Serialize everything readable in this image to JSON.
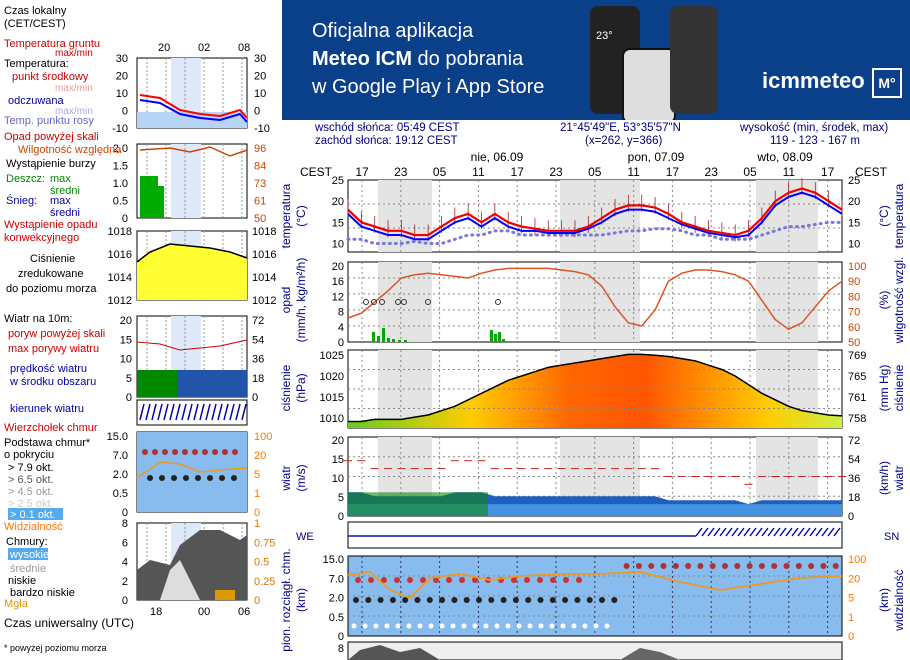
{
  "banner": {
    "line1": "Oficjalna aplikacja",
    "line2_bold": "Meteo ICM",
    "line2_rest": " do pobrania",
    "line3": "w Google Play i App Store",
    "logo": "icmmeteo",
    "logo_badge": "M°",
    "phone_temp": "23°",
    "bg_color": "#0a3f8a"
  },
  "header": {
    "sunrise": "wschód słońca: 05:49 CEST",
    "sunset": "zachód słońca: 19:12 CEST",
    "coords": "21°45'49\"E, 53°35'57\"N",
    "grid": "(x=262,  y=366)",
    "elev_label": "wysokość (min, środek, max)",
    "elev_values": "119 - 123 - 167 m"
  },
  "legend": {
    "local_time": "Czas lokalny",
    "local_time2": "(CET/CEST)",
    "lt_ticks": [
      "20",
      "02",
      "08"
    ],
    "soil": "Temperatura gruntu",
    "soil2": "max/min",
    "temp": "Temperatura:",
    "mid": "punkt środkowy",
    "maxmin": "max/min",
    "feels": "odczuwana",
    "feels2": "max/min",
    "dew": "Temp. punktu rosy",
    "precip_above": "Opad powyżej skali",
    "rh": "Wilgotność względna",
    "storm": "Wystąpienie burzy",
    "rain": "Deszcz:",
    "rain_max": "max",
    "rain_avg": "średni",
    "snow": "Śnieg:",
    "snow_max": "max",
    "snow_avg": "średni",
    "conv": "Wystąpienie opadu",
    "conv2": "konwekcyjnego",
    "pressure1": "Ciśnienie",
    "pressure2": "zredukowane",
    "pressure3": "do poziomu morza",
    "wind10": "Wiatr na 10m:",
    "gusts_above": "poryw powyżej skali",
    "gusts_max": "max porywy wiatru",
    "wind_speed": "prędkość wiatru",
    "wind_area": "w środku obszaru",
    "wind_dir": "kierunek wiatru",
    "cloud_top": "Wierzchołek chmur",
    "cloud_base": "Podstawa chmur*",
    "cloud_base2": "o pokryciu",
    "okt79": "> 7.9 okt.",
    "okt65": "> 6.5 okt.",
    "okt45": "> 4.5 okt.",
    "okt25": "> 2.5 okt.",
    "okt01": "> 0.1 okt.",
    "visibility": "Widzialność",
    "clouds": "Chmury:",
    "high": "wysokie",
    "medium": "średnie",
    "low": "niskie",
    "verylow": "bardzo niskie",
    "fog": "Mgła",
    "utc": "Czas uniwersalny (UTC)",
    "utc_ticks": [
      "18",
      "00",
      "06"
    ],
    "footnote": "* powyżej poziomu morza",
    "temp_left_ticks": [
      "30",
      "20",
      "10",
      "0",
      "-10"
    ],
    "temp_right_ticks": [
      "30",
      "20",
      "10",
      "0",
      "-10"
    ],
    "precip_left_ticks": [
      "2.0",
      "1.5",
      "1.0",
      "0.5",
      "0"
    ],
    "rh_ticks": [
      "96",
      "84",
      "73",
      "61",
      "50"
    ],
    "pres_left_ticks": [
      "1018",
      "1016",
      "1014",
      "1012"
    ],
    "pres_right_ticks": [
      "1018",
      "1016",
      "1014",
      "1012"
    ],
    "wind_left_ticks": [
      "20",
      "15",
      "10",
      "5",
      "0"
    ],
    "wind_right_ticks": [
      "72",
      "54",
      "36",
      "18",
      "0"
    ],
    "cb_left_ticks": [
      "15.0",
      "7.0",
      "2.0",
      "0.5",
      "0"
    ],
    "cb_right_ticks": [
      "100",
      "20",
      "5",
      "1",
      "0"
    ],
    "cl_left_ticks": [
      "8",
      "6",
      "4",
      "2",
      "0"
    ],
    "cl_right_ticks": [
      "1",
      "0.75",
      "0.5",
      "0.25",
      "0"
    ]
  },
  "main": {
    "tz": "CEST",
    "hours": [
      "17",
      "23",
      "05",
      "11",
      "17",
      "23",
      "05",
      "11",
      "17",
      "23",
      "05",
      "11",
      "17"
    ],
    "days": [
      "nie, 06.09",
      "pon, 07.09",
      "wto, 08.09"
    ],
    "temp_label": "temperatura",
    "temp_unit": "(°C)",
    "temp_ticks": [
      "25",
      "20",
      "15",
      "10"
    ],
    "precip_label": "opad",
    "precip_unit": "(mm/h, kg/m²/h)",
    "precip_ticks": [
      "20",
      "16",
      "12",
      "8",
      "4",
      "0"
    ],
    "rh_label": "wilgotność wzgl.",
    "rh_unit": "(%)",
    "rh_ticks": [
      "100",
      "90",
      "80",
      "70",
      "60",
      "50"
    ],
    "pres_label": "ciśnienie",
    "pres_unit": "(hPa)",
    "pres_ticks": [
      "1025",
      "1020",
      "1015",
      "1010"
    ],
    "pres_mmhg_unit": "(mm Hg)",
    "pres_mmhg_ticks": [
      "769",
      "765",
      "761",
      "758"
    ],
    "wind_label": "wiatr",
    "wind_unit": "(m/s)",
    "wind_ticks": [
      "20",
      "15",
      "10",
      "5",
      "0"
    ],
    "wind_kmh_unit": "(km/h)",
    "wind_kmh_ticks": [
      "72",
      "54",
      "36",
      "18",
      "0"
    ],
    "dir_label": "WE",
    "dir_label2": "SN",
    "cb_label": "pion. rozciągł. chm.",
    "cb_unit": "(km)",
    "cb_ticks": [
      "15.0",
      "7.0",
      "2.0",
      "0.5",
      "0"
    ],
    "vis_label": "widzialność",
    "vis_unit": "(km)",
    "vis_ticks": [
      "100",
      "20",
      "5",
      "1",
      "0"
    ],
    "cl_tick": "8"
  },
  "chart_data": [
    {
      "type": "line",
      "title": "temperatura",
      "ylabel": "(°C)",
      "x": [
        "17",
        "19",
        "21",
        "23",
        "01",
        "03",
        "05",
        "07",
        "09",
        "11",
        "13",
        "15",
        "17",
        "19",
        "21",
        "23",
        "01",
        "03",
        "05",
        "07",
        "09",
        "11",
        "13",
        "15",
        "17",
        "19",
        "21",
        "23",
        "01",
        "03",
        "05",
        "07",
        "09",
        "11",
        "13",
        "15",
        "17",
        "19"
      ],
      "series": [
        {
          "values": [
            18,
            15,
            14,
            13,
            13,
            12,
            12,
            14,
            16,
            17,
            15,
            17,
            15,
            14,
            13.5,
            13,
            13,
            13,
            14,
            16,
            18,
            19,
            19,
            18.5,
            17,
            15,
            14,
            13,
            12.5,
            12,
            13,
            16,
            20,
            22,
            23,
            22,
            20,
            18
          ]
        },
        {
          "values": [
            17,
            14,
            13,
            12,
            12,
            11,
            11,
            13,
            15,
            16,
            14,
            16,
            14,
            13,
            13,
            12.5,
            12.5,
            12.5,
            13.5,
            15,
            17,
            18,
            18,
            17.5,
            16,
            14.5,
            13.5,
            12.5,
            12,
            11.5,
            12,
            15,
            19,
            21,
            22,
            21,
            19,
            17
          ]
        },
        {
          "values": [
            11,
            11,
            10,
            10,
            10,
            10.5,
            10,
            10,
            11,
            12,
            12,
            13,
            13,
            12,
            12,
            12,
            12,
            12,
            12,
            12,
            12.5,
            13,
            13,
            13.5,
            13.5,
            13,
            12,
            12,
            11,
            11,
            11,
            12,
            13,
            14,
            14,
            14.5,
            15,
            15
          ]
        }
      ],
      "ylim": [
        8,
        25
      ]
    },
    {
      "type": "line",
      "title": "wilgotność wzgl.",
      "ylabel": "(%)",
      "x": [
        "17",
        "19",
        "21",
        "23",
        "01",
        "03",
        "05",
        "07",
        "09",
        "11",
        "13",
        "15",
        "17",
        "19",
        "21",
        "23",
        "01",
        "03",
        "05",
        "07",
        "09",
        "11",
        "13",
        "15",
        "17",
        "19",
        "21",
        "23",
        "01",
        "03",
        "05",
        "07",
        "09",
        "11",
        "13",
        "15",
        "17",
        "19"
      ],
      "series": [
        {
          "values": [
            65,
            68,
            75,
            82,
            90,
            92,
            93,
            92,
            91,
            90,
            93,
            95,
            96,
            96,
            96,
            96,
            95,
            94,
            92,
            85,
            72,
            62,
            60,
            70,
            88,
            93,
            95,
            95,
            94,
            92,
            88,
            76,
            64,
            58,
            62,
            72,
            82,
            88
          ]
        }
      ],
      "ylim": [
        50,
        100
      ]
    },
    {
      "type": "area",
      "title": "ciśnienie",
      "ylabel": "(hPa)",
      "x": [
        "17",
        "19",
        "21",
        "23",
        "01",
        "03",
        "05",
        "07",
        "09",
        "11",
        "13",
        "15",
        "17",
        "19",
        "21",
        "23",
        "01",
        "03",
        "05",
        "07",
        "09",
        "11",
        "13",
        "15",
        "17",
        "19",
        "21",
        "23",
        "01",
        "03",
        "05",
        "07",
        "09",
        "11",
        "13",
        "15",
        "17",
        "19"
      ],
      "series": [
        {
          "values": [
            1009.5,
            1009.5,
            1010,
            1010,
            1010,
            1010.5,
            1011,
            1012,
            1013,
            1014.5,
            1016,
            1017.5,
            1019,
            1020,
            1021,
            1022,
            1022.5,
            1023,
            1023.5,
            1024,
            1024.5,
            1025,
            1025,
            1024.8,
            1024.5,
            1024,
            1023.5,
            1022.5,
            1021.5,
            1020,
            1018,
            1016,
            1014.5,
            1013,
            1012,
            1011.5,
            1011,
            1010.8
          ]
        }
      ],
      "ylim": [
        1008,
        1026
      ]
    },
    {
      "type": "area",
      "title": "wiatr",
      "ylabel": "(m/s)",
      "x": [
        "17",
        "19",
        "21",
        "23",
        "01",
        "03",
        "05",
        "07",
        "09",
        "11",
        "13",
        "15",
        "17",
        "19",
        "21",
        "23",
        "01",
        "03",
        "05",
        "07",
        "09",
        "11",
        "13",
        "15",
        "17",
        "19",
        "21",
        "23",
        "01",
        "03",
        "05",
        "07",
        "09",
        "11",
        "13",
        "15",
        "17",
        "19"
      ],
      "series": [
        {
          "values": [
            6,
            6,
            5,
            5,
            5,
            5,
            5,
            5,
            6,
            6,
            6,
            5,
            5,
            5,
            5,
            5,
            5,
            5,
            5,
            5,
            5,
            5,
            5,
            5,
            4,
            4,
            4,
            4,
            4,
            4,
            3,
            4,
            4,
            4,
            4,
            4,
            4,
            4
          ]
        }
      ],
      "ylim": [
        0,
        20
      ]
    }
  ]
}
